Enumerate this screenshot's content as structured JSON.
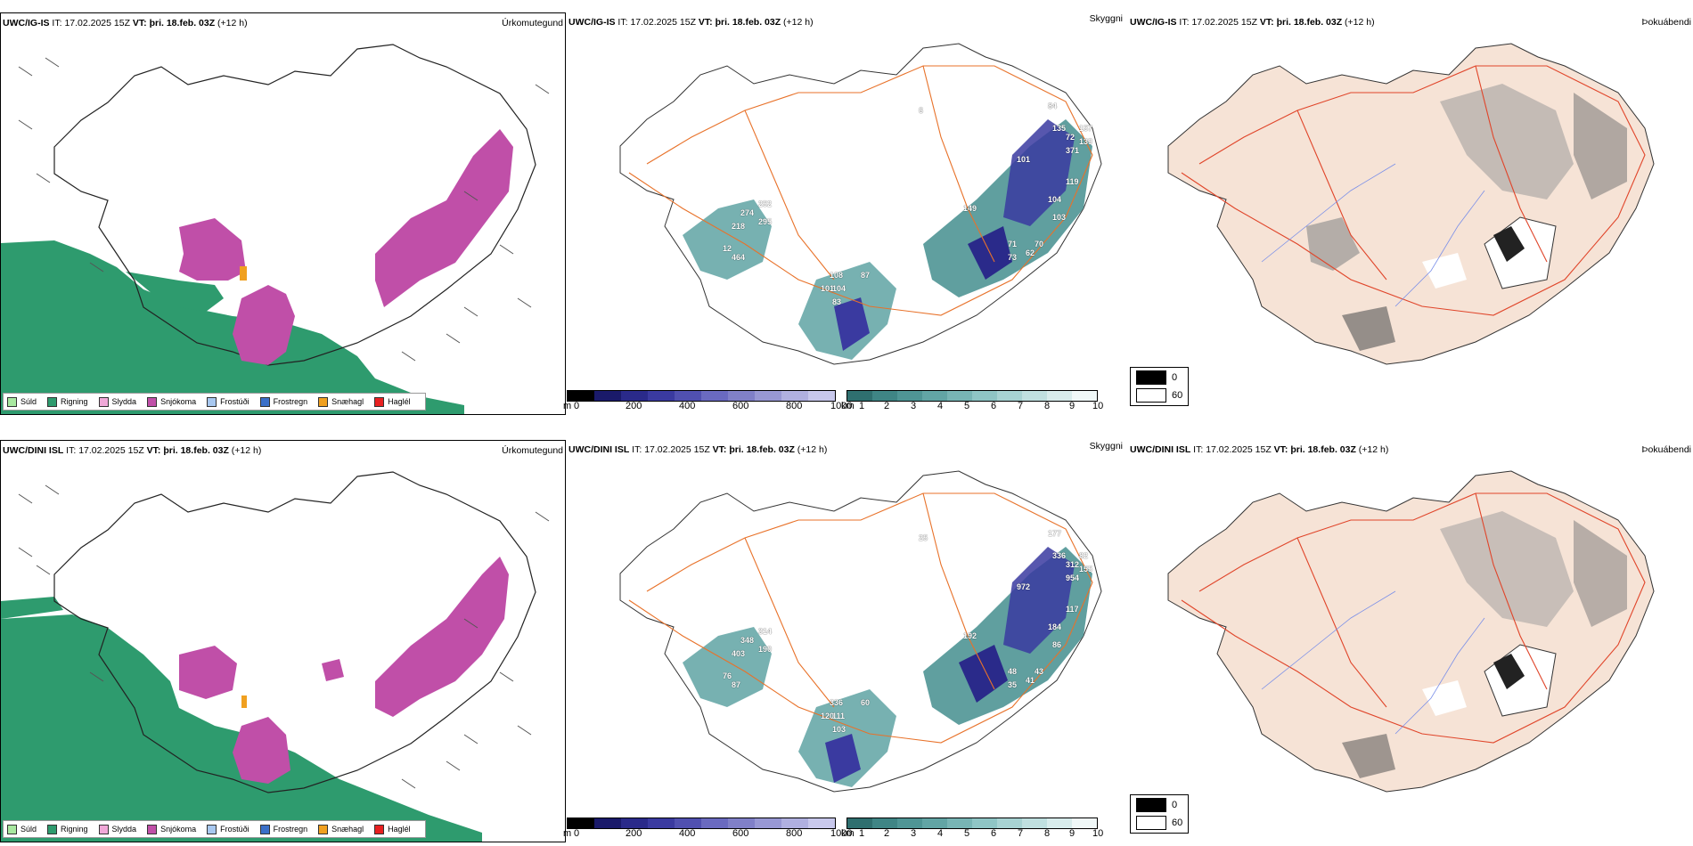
{
  "colors": {
    "rain_green": "#2e9b6e",
    "snow_magenta": "#c04fa8",
    "land_beige": "#f6e3d6",
    "road_orange": "#e8722a",
    "teal_dark": "#2f7d7d",
    "navy": "#2b2f8f"
  },
  "rows": [
    {
      "model": "UWC/IG-IS",
      "it_label": "IT:",
      "it_value": "17.02.2025 15Z",
      "vt_label": "VT:",
      "vt_value": "þri. 18.feb. 03Z",
      "lead": "(+12 h)",
      "right_title_precip": "Úrkomutegund",
      "right_title_vis": "Skyggni",
      "right_title_fog": "Þokuábendi",
      "vis_labels": [
        "157",
        "139",
        "84",
        "135",
        "72",
        "371",
        "101",
        "119",
        "104",
        "103",
        "71",
        "73",
        "62",
        "70",
        "274",
        "252",
        "218",
        "295",
        "12",
        "464",
        "108",
        "104",
        "101",
        "83",
        "87",
        "6",
        "149"
      ]
    },
    {
      "model": "UWC/DINI ISL",
      "it_label": "IT:",
      "it_value": "17.02.2025 15Z",
      "vt_label": "VT:",
      "vt_value": "þri. 18.feb. 03Z",
      "lead": "(+12 h)",
      "right_title_precip": "Úrkomutegund",
      "right_title_vis": "Skyggni",
      "right_title_fog": "Þokuábendi",
      "vis_labels": [
        "82",
        "155",
        "177",
        "336",
        "312",
        "954",
        "972",
        "117",
        "184",
        "86",
        "48",
        "35",
        "41",
        "43",
        "348",
        "314",
        "403",
        "190",
        "76",
        "87",
        "336",
        "111",
        "120",
        "103",
        "60",
        "25",
        "192"
      ]
    }
  ],
  "precip_legend": [
    {
      "label": "Súld",
      "color": "#a8e8a0"
    },
    {
      "label": "Rigning",
      "color": "#2e9b6e"
    },
    {
      "label": "Slydda",
      "color": "#f0a8d8"
    },
    {
      "label": "Snjókoma",
      "color": "#c04fa8"
    },
    {
      "label": "Frostúði",
      "color": "#a8c8f0"
    },
    {
      "label": "Frostregn",
      "color": "#3a6fc8"
    },
    {
      "label": "Snæhagl",
      "color": "#f0a020"
    },
    {
      "label": "Haglél",
      "color": "#e82020"
    }
  ],
  "ceiling_bar": {
    "unit": "m",
    "ticks": [
      "0",
      "200",
      "400",
      "600",
      "800",
      "1000"
    ],
    "colors": [
      "#000000",
      "#1a1a6a",
      "#2a2a8a",
      "#3a3aa0",
      "#5050b0",
      "#6a6ac0",
      "#8080c8",
      "#9898d4",
      "#b0b0e0",
      "#c8c8ec"
    ]
  },
  "vis_bar": {
    "unit": "km",
    "ticks": [
      "1",
      "2",
      "3",
      "4",
      "5",
      "6",
      "7",
      "8",
      "9",
      "10"
    ],
    "colors": [
      "#2f6f6f",
      "#3f8585",
      "#4f9595",
      "#62a5a5",
      "#78b5b5",
      "#8fc5c5",
      "#a8d3d3",
      "#c0e0e0",
      "#d8ecec",
      "#f0f8f8"
    ]
  },
  "fog_key": [
    {
      "value": "0",
      "color": "#000000"
    },
    {
      "value": "60",
      "color": "#ffffff"
    }
  ]
}
